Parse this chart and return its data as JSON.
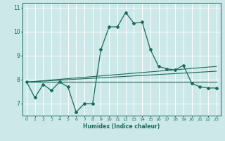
{
  "xlabel": "Humidex (Indice chaleur)",
  "ylabel": "",
  "xlim": [
    -0.5,
    23.5
  ],
  "ylim": [
    6.5,
    11.2
  ],
  "yticks": [
    7,
    8,
    9,
    10,
    11
  ],
  "xticks": [
    0,
    1,
    2,
    3,
    4,
    5,
    6,
    7,
    8,
    9,
    10,
    11,
    12,
    13,
    14,
    15,
    16,
    17,
    18,
    19,
    20,
    21,
    22,
    23
  ],
  "bg_color": "#cce8e8",
  "grid_color": "#ffffff",
  "line_color": "#1a6b5a",
  "series": [
    {
      "x": [
        0,
        1,
        2,
        3,
        4,
        5,
        6,
        7,
        8,
        9,
        10,
        11,
        12,
        13,
        14,
        15,
        16,
        17,
        18,
        19,
        20,
        21,
        22,
        23
      ],
      "y": [
        7.9,
        7.25,
        7.8,
        7.55,
        7.9,
        7.7,
        6.65,
        7.0,
        7.0,
        9.25,
        10.2,
        10.2,
        10.8,
        10.35,
        10.4,
        9.25,
        8.55,
        8.45,
        8.4,
        8.6,
        7.85,
        7.7,
        7.65,
        7.65
      ],
      "marker": "D",
      "markersize": 2.0,
      "linewidth": 0.9
    },
    {
      "x": [
        0,
        23
      ],
      "y": [
        7.9,
        7.9
      ],
      "marker": null,
      "markersize": 0,
      "linewidth": 0.8
    },
    {
      "x": [
        0,
        23
      ],
      "y": [
        7.9,
        8.35
      ],
      "marker": null,
      "markersize": 0,
      "linewidth": 0.8
    },
    {
      "x": [
        0,
        23
      ],
      "y": [
        7.9,
        8.55
      ],
      "marker": null,
      "markersize": 0,
      "linewidth": 0.8
    }
  ]
}
